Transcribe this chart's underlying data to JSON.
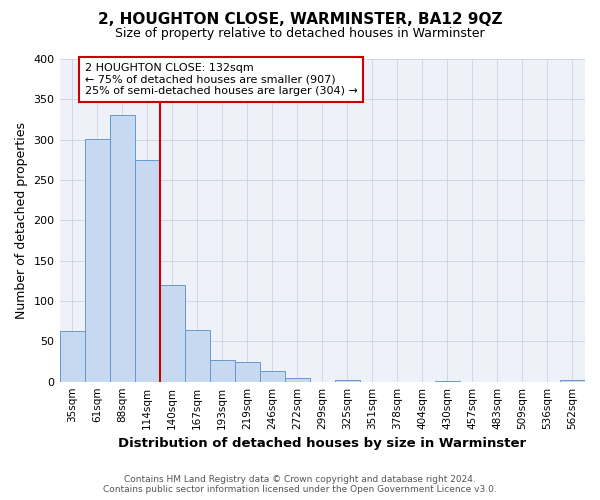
{
  "title": "2, HOUGHTON CLOSE, WARMINSTER, BA12 9QZ",
  "subtitle": "Size of property relative to detached houses in Warminster",
  "xlabel": "Distribution of detached houses by size in Warminster",
  "ylabel": "Number of detached properties",
  "bar_labels": [
    "35sqm",
    "61sqm",
    "88sqm",
    "114sqm",
    "140sqm",
    "167sqm",
    "193sqm",
    "219sqm",
    "246sqm",
    "272sqm",
    "299sqm",
    "325sqm",
    "351sqm",
    "378sqm",
    "404sqm",
    "430sqm",
    "457sqm",
    "483sqm",
    "509sqm",
    "536sqm",
    "562sqm"
  ],
  "bar_values": [
    63,
    301,
    330,
    275,
    120,
    64,
    27,
    25,
    13,
    4,
    0,
    2,
    0,
    0,
    0,
    1,
    0,
    0,
    0,
    0,
    2
  ],
  "bar_color": "#c6d9f0",
  "bar_edge_color": "#6699cc",
  "vline_x": 3.5,
  "vline_color": "#cc0000",
  "annotation_line1": "2 HOUGHTON CLOSE: 132sqm",
  "annotation_line2": "← 75% of detached houses are smaller (907)",
  "annotation_line3": "25% of semi-detached houses are larger (304) →",
  "annotation_box_color": "#ffffff",
  "annotation_box_edge": "#cc0000",
  "ylim": [
    0,
    400
  ],
  "yticks": [
    0,
    50,
    100,
    150,
    200,
    250,
    300,
    350,
    400
  ],
  "footer1": "Contains HM Land Registry data © Crown copyright and database right 2024.",
  "footer2": "Contains public sector information licensed under the Open Government Licence v3.0.",
  "bg_color": "#ffffff",
  "grid_color": "#d0d8e8"
}
